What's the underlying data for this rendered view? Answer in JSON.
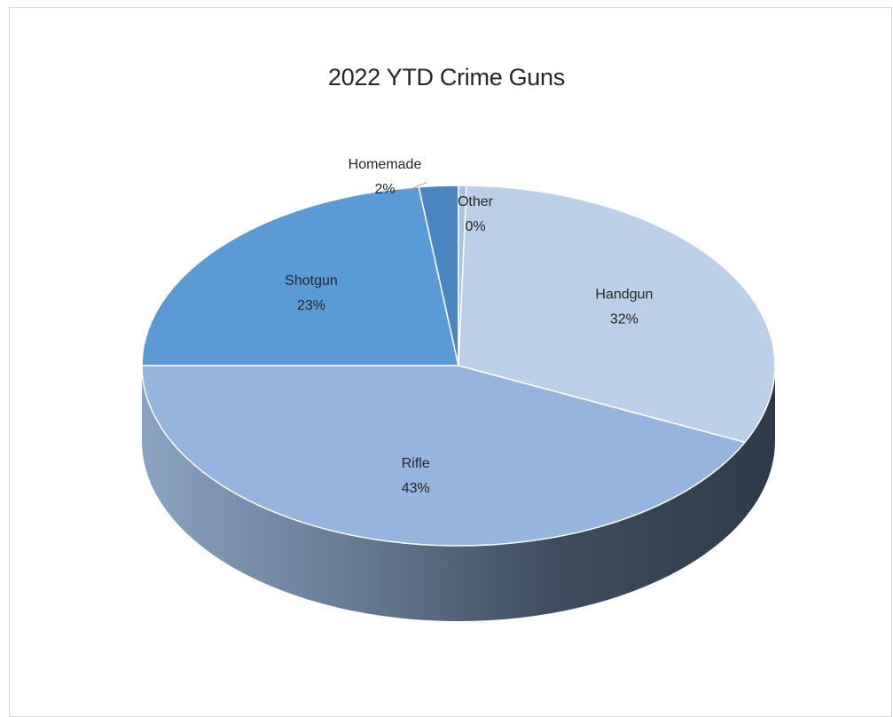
{
  "chart_data": {
    "type": "pie",
    "title": "2022 YTD Crime Guns",
    "slices": [
      {
        "label": "Handgun",
        "value": 32,
        "display": "32%",
        "color": "#bccfe8"
      },
      {
        "label": "Rifle",
        "value": 43,
        "display": "43%",
        "color": "#95b5de"
      },
      {
        "label": "Shotgun",
        "value": 23,
        "display": "23%",
        "color": "#5b9bd5"
      },
      {
        "label": "Homemade",
        "value": 2,
        "display": "2%",
        "color": "#4a87c1"
      },
      {
        "label": "Other",
        "value": 0,
        "display": "0%",
        "color": "#a9c2e2"
      }
    ],
    "legend": "none",
    "style": "3d-pie"
  }
}
